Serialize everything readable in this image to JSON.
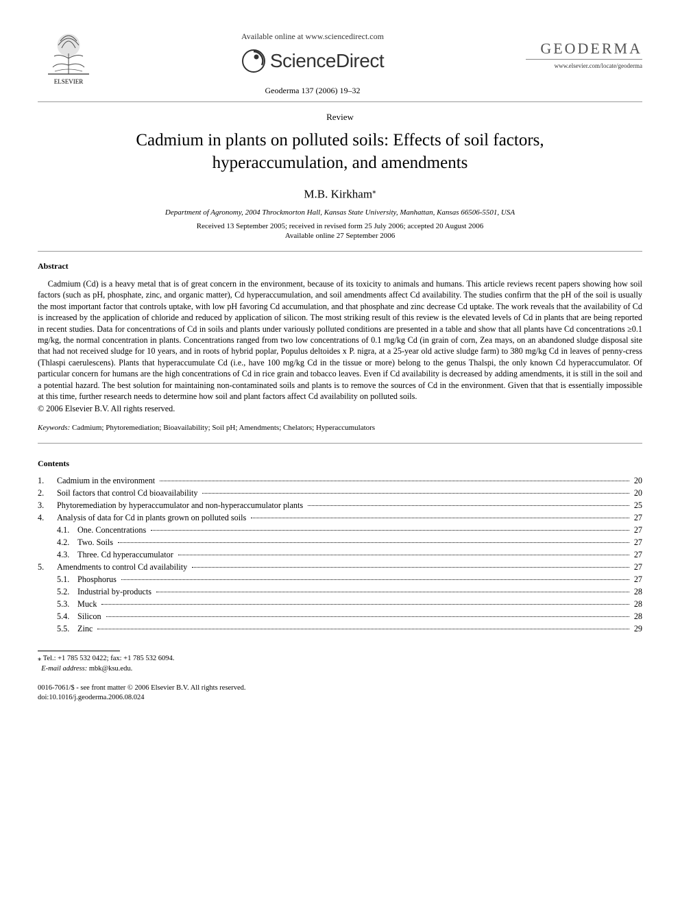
{
  "header": {
    "publisher_name": "ELSEVIER",
    "available_line": "Available online at www.sciencedirect.com",
    "sd_brand": "ScienceDirect",
    "citation": "Geoderma 137 (2006) 19–32",
    "journal_name": "GEODERMA",
    "journal_url": "www.elsevier.com/locate/geoderma"
  },
  "article": {
    "doc_type": "Review",
    "title_line1": "Cadmium in plants on polluted soils: Effects of soil factors,",
    "title_line2": "hyperaccumulation, and amendments",
    "author": "M.B. Kirkham",
    "author_mark": "⁎",
    "affiliation": "Department of Agronomy, 2004 Throckmorton Hall, Kansas State University, Manhattan, Kansas 66506-5501, USA",
    "received_line": "Received 13 September 2005; received in revised form 25 July 2006; accepted 20 August 2006",
    "online_line": "Available online 27 September 2006"
  },
  "abstract": {
    "heading": "Abstract",
    "body": "Cadmium (Cd) is a heavy metal that is of great concern in the environment, because of its toxicity to animals and humans. This article reviews recent papers showing how soil factors (such as pH, phosphate, zinc, and organic matter), Cd hyperaccumulation, and soil amendments affect Cd availability. The studies confirm that the pH of the soil is usually the most important factor that controls uptake, with low pH favoring Cd accumulation, and that phosphate and zinc decrease Cd uptake. The work reveals that the availability of Cd is increased by the application of chloride and reduced by application of silicon. The most striking result of this review is the elevated levels of Cd in plants that are being reported in recent studies. Data for concentrations of Cd in soils and plants under variously polluted conditions are presented in a table and show that all plants have Cd concentrations ≥0.1 mg/kg, the normal concentration in plants. Concentrations ranged from two low concentrations of 0.1 mg/kg Cd (in grain of corn, Zea mays, on an abandoned sludge disposal site that had not received sludge for 10 years, and in roots of hybrid poplar, Populus deltoides x P. nigra, at a 25-year old active sludge farm) to 380 mg/kg Cd in leaves of penny-cress (Thlaspi caerulescens). Plants that hyperaccumulate Cd (i.e., have 100 mg/kg Cd in the tissue or more) belong to the genus Thalspi, the only known Cd hyperaccumulator. Of particular concern for humans are the high concentrations of Cd in rice grain and tobacco leaves. Even if Cd availability is decreased by adding amendments, it is still in the soil and a potential hazard. The best solution for maintaining non-contaminated soils and plants is to remove the sources of Cd in the environment. Given that that is essentially impossible at this time, further research needs to determine how soil and plant factors affect Cd availability on polluted soils.",
    "copyright": "© 2006 Elsevier B.V. All rights reserved."
  },
  "keywords": {
    "label": "Keywords:",
    "text": "Cadmium; Phytoremediation; Bioavailability; Soil pH; Amendments; Chelators; Hyperaccumulators"
  },
  "contents": {
    "heading": "Contents",
    "items": [
      {
        "num": "1.",
        "title": "Cadmium in the environment",
        "page": "20",
        "level": 0
      },
      {
        "num": "2.",
        "title": "Soil factors that control Cd bioavailability",
        "page": "20",
        "level": 0
      },
      {
        "num": "3.",
        "title": "Phytoremediation by hyperaccumulator and non-hyperaccumulator plants",
        "page": "25",
        "level": 0
      },
      {
        "num": "4.",
        "title": "Analysis of data for Cd in plants grown on polluted soils",
        "page": "27",
        "level": 0
      },
      {
        "num": "4.1.",
        "title": "One. Concentrations",
        "page": "27",
        "level": 1
      },
      {
        "num": "4.2.",
        "title": "Two. Soils",
        "page": "27",
        "level": 1
      },
      {
        "num": "4.3.",
        "title": "Three. Cd hyperaccumulator",
        "page": "27",
        "level": 1
      },
      {
        "num": "5.",
        "title": "Amendments to control Cd availability",
        "page": "27",
        "level": 0
      },
      {
        "num": "5.1.",
        "title": "Phosphorus",
        "page": "27",
        "level": 1
      },
      {
        "num": "5.2.",
        "title": "Industrial by-products",
        "page": "28",
        "level": 1
      },
      {
        "num": "5.3.",
        "title": "Muck",
        "page": "28",
        "level": 1
      },
      {
        "num": "5.4.",
        "title": "Silicon",
        "page": "28",
        "level": 1
      },
      {
        "num": "5.5.",
        "title": "Zinc",
        "page": "29",
        "level": 1
      }
    ]
  },
  "footnote": {
    "mark": "⁎",
    "tel": "Tel.: +1 785 532 0422; fax: +1 785 532 6094.",
    "email_label": "E-mail address:",
    "email": "mbk@ksu.edu."
  },
  "footer": {
    "issn_line": "0016-7061/$ - see front matter © 2006 Elsevier B.V. All rights reserved.",
    "doi_line": "doi:10.1016/j.geoderma.2006.08.024"
  },
  "colors": {
    "text": "#000000",
    "rule": "#999999",
    "sd_gray": "#323232",
    "journal_gray": "#555555"
  }
}
